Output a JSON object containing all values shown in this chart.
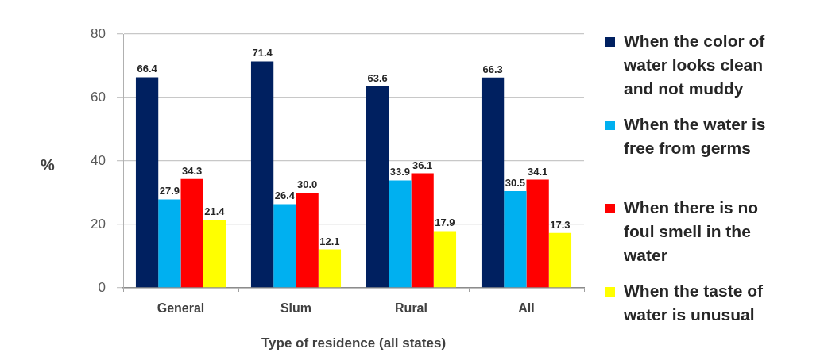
{
  "chart_data": {
    "type": "bar",
    "xlabel": "Type of residence (all states)",
    "ylabel": "%",
    "categories": [
      "General",
      "Slum",
      "Rural",
      "All"
    ],
    "series": [
      {
        "name": "When the color of water looks clean and not muddy",
        "color": "#002060",
        "values": [
          66.4,
          71.4,
          63.6,
          66.3
        ],
        "value_labels": [
          "66.4",
          "71.4",
          "63.6",
          "66.3"
        ]
      },
      {
        "name": "When the water is free from germs",
        "color": "#00b0f0",
        "values": [
          27.9,
          26.4,
          33.9,
          30.5
        ],
        "value_labels": [
          "27.9",
          "26.4",
          "33.9",
          "30.5"
        ]
      },
      {
        "name": "When there is no foul smell in the water",
        "color": "#ff0000",
        "values": [
          34.3,
          30.0,
          36.1,
          34.1
        ],
        "value_labels": [
          "34.3",
          "30.0",
          "36.1",
          "34.1"
        ]
      },
      {
        "name": "When the taste of water is unusual",
        "color": "#ffff00",
        "values": [
          21.4,
          12.1,
          17.9,
          17.3
        ],
        "value_labels": [
          "21.4",
          "12.1",
          "17.9",
          "17.3"
        ]
      }
    ],
    "ylim": [
      0,
      80
    ],
    "yticks": [
      0,
      20,
      40,
      60,
      80
    ],
    "grid": "y",
    "legend": "right"
  }
}
